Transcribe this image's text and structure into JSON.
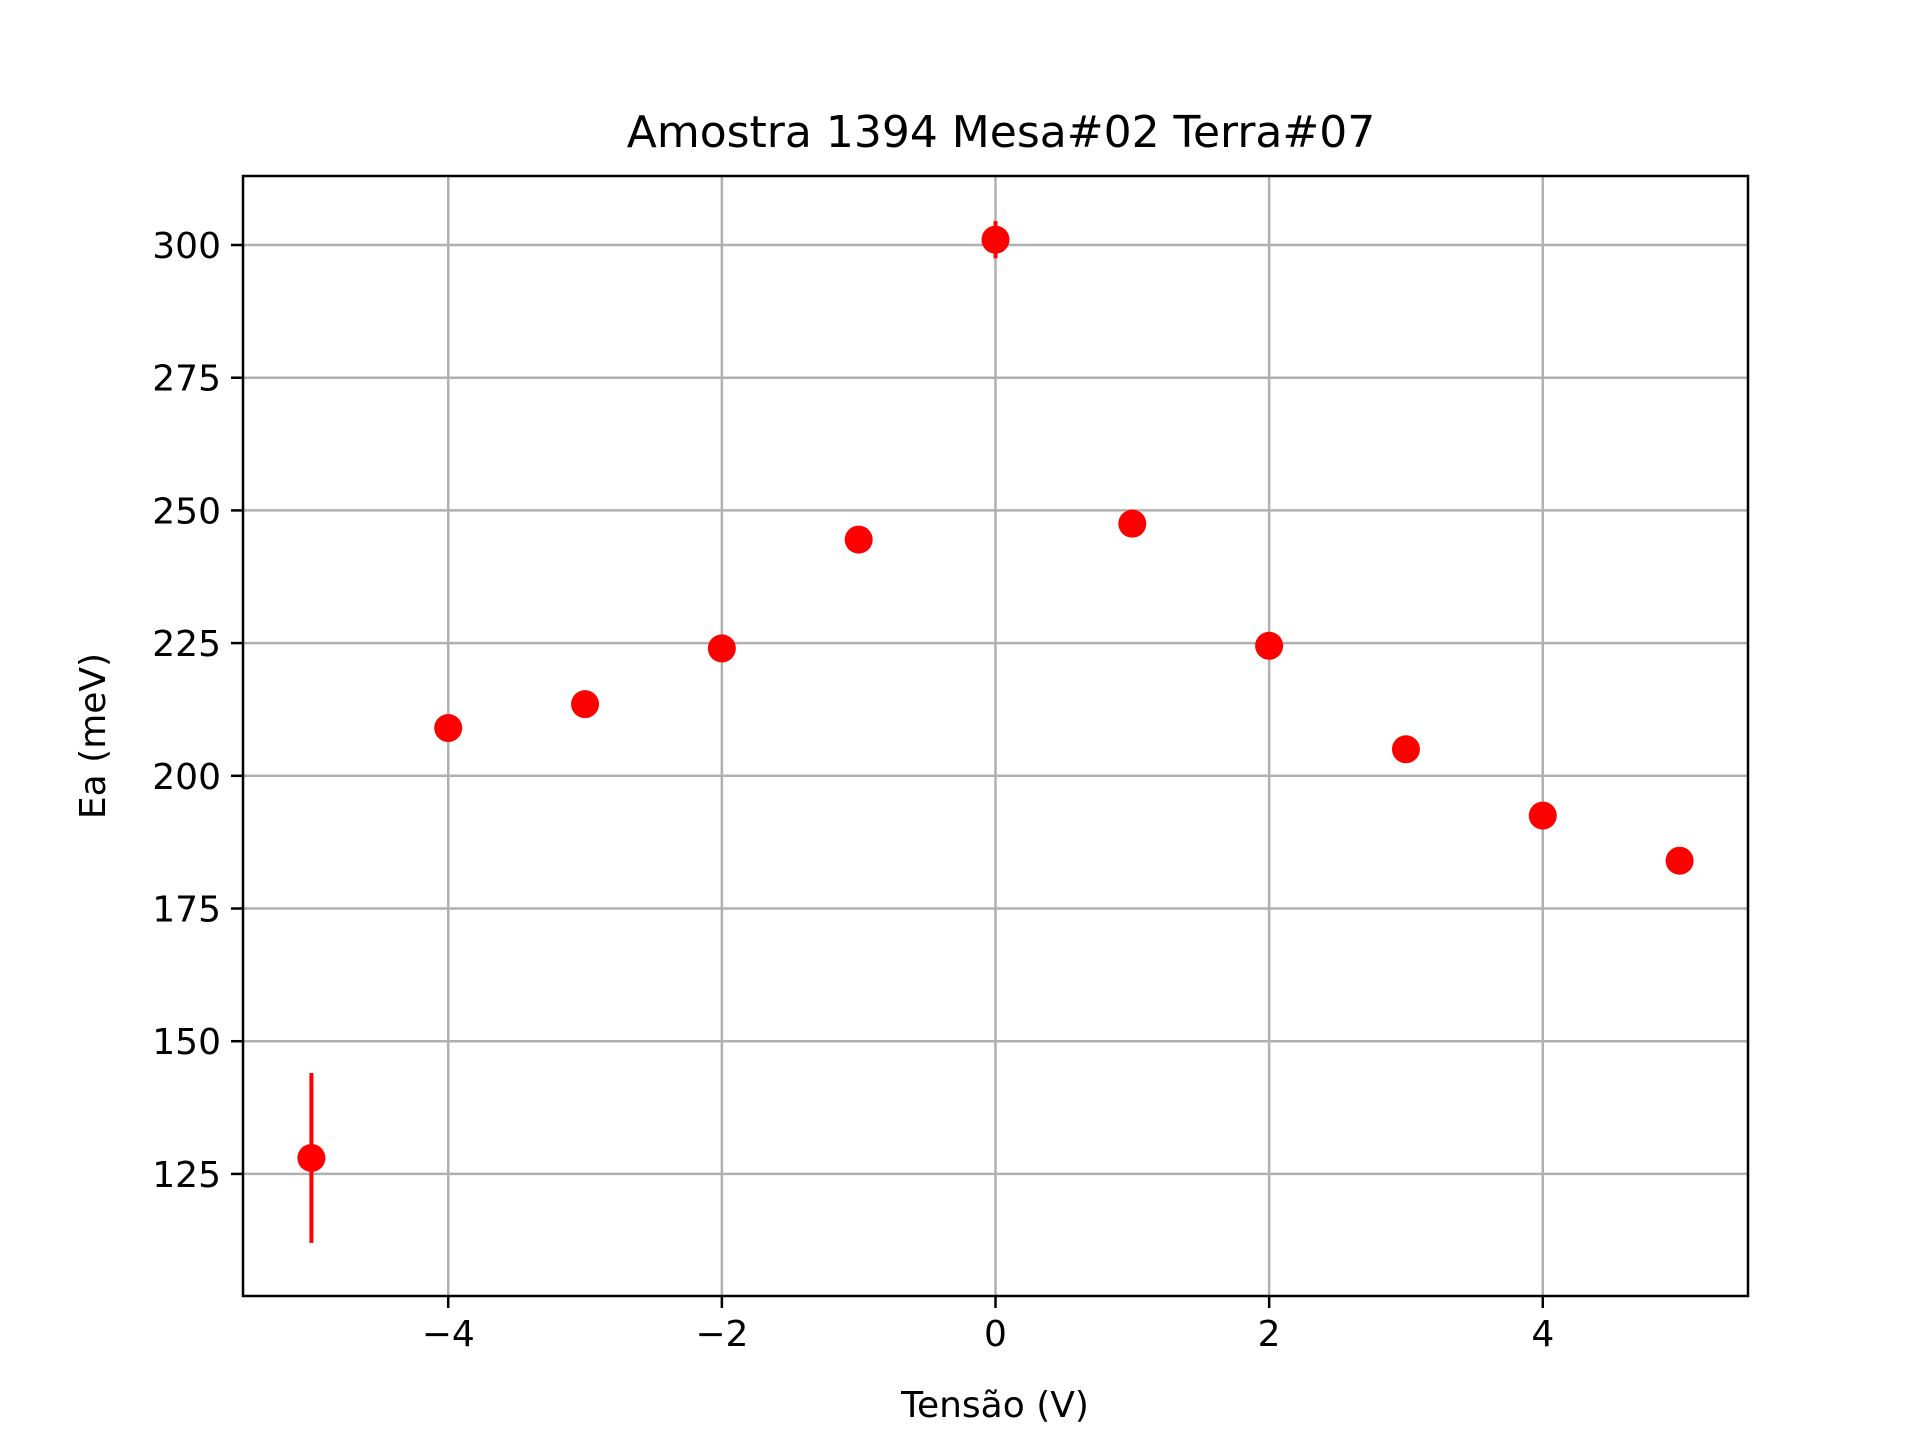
{
  "chart_data": {
    "type": "scatter",
    "title": "Amostra 1394 Mesa#02 Terra#07",
    "xlabel": "Tensão (V)",
    "ylabel": "Ea (meV)",
    "xlim": [
      -5.5,
      5.5
    ],
    "ylim": [
      102,
      313
    ],
    "grid": true,
    "marker_color": "#ff0000",
    "x_ticks": [
      {
        "value": -4,
        "label": "−4"
      },
      {
        "value": -2,
        "label": "−2"
      },
      {
        "value": 0,
        "label": "0"
      },
      {
        "value": 2,
        "label": "2"
      },
      {
        "value": 4,
        "label": "4"
      }
    ],
    "y_ticks": [
      {
        "value": 125,
        "label": "125"
      },
      {
        "value": 150,
        "label": "150"
      },
      {
        "value": 175,
        "label": "175"
      },
      {
        "value": 200,
        "label": "200"
      },
      {
        "value": 225,
        "label": "225"
      },
      {
        "value": 250,
        "label": "250"
      },
      {
        "value": 275,
        "label": "275"
      },
      {
        "value": 300,
        "label": "300"
      }
    ],
    "points": [
      {
        "x": -5,
        "y": 128.0,
        "yerr": 16.0
      },
      {
        "x": -4,
        "y": 209.0,
        "yerr": 0.0
      },
      {
        "x": -3,
        "y": 213.5,
        "yerr": 0.0
      },
      {
        "x": -2,
        "y": 224.0,
        "yerr": 0.0
      },
      {
        "x": -1,
        "y": 244.5,
        "yerr": 0.0
      },
      {
        "x": 0,
        "y": 301.0,
        "yerr": 3.5
      },
      {
        "x": 1,
        "y": 247.5,
        "yerr": 0.0
      },
      {
        "x": 2,
        "y": 224.5,
        "yerr": 0.0
      },
      {
        "x": 3,
        "y": 205.0,
        "yerr": 0.0
      },
      {
        "x": 4,
        "y": 192.5,
        "yerr": 0.0
      },
      {
        "x": 5,
        "y": 184.0,
        "yerr": 0.0
      }
    ]
  }
}
